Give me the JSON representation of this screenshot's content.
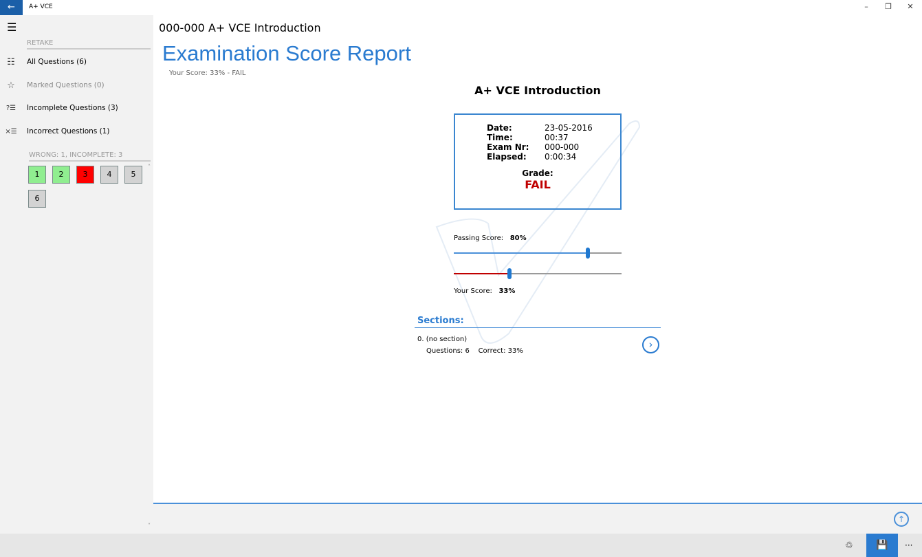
{
  "window": {
    "title": "A+ VCE",
    "back_icon": "arrow-left-icon",
    "minimize": "–",
    "restore": "❐",
    "close": "✕"
  },
  "sidebar": {
    "menu_icon": "hamburger-icon",
    "retake_header": "RETAKE",
    "items": [
      {
        "label": "All Questions (6)",
        "icon": "list-icon",
        "enabled": true
      },
      {
        "label": "Marked Questions (0)",
        "icon": "star-icon",
        "enabled": false
      },
      {
        "label": "Incomplete Questions (3)",
        "icon": "question-list-icon",
        "enabled": true
      },
      {
        "label": "Incorrect Questions (1)",
        "icon": "x-list-icon",
        "enabled": true
      }
    ],
    "summary_header": "WRONG: 1, INCOMPLETE: 3",
    "questions": [
      {
        "n": "1",
        "status": "correct"
      },
      {
        "n": "2",
        "status": "correct"
      },
      {
        "n": "3",
        "status": "wrong"
      },
      {
        "n": "4",
        "status": "incomplete"
      },
      {
        "n": "5",
        "status": "incomplete"
      },
      {
        "n": "6",
        "status": "incomplete"
      }
    ]
  },
  "main": {
    "exam_title": "000-000 A+ VCE Introduction",
    "heading": "Examination Score Report",
    "subtitle": "Your Score: 33% - FAIL",
    "report_title": "A+ VCE Introduction",
    "details": [
      {
        "label": "Date:",
        "value": "23-05-2016"
      },
      {
        "label": "Time:",
        "value": "00:37"
      },
      {
        "label": "Exam Nr:",
        "value": "000-000"
      },
      {
        "label": "Elapsed:",
        "value": "0:00:34"
      }
    ],
    "grade_label": "Grade:",
    "grade_value": "FAIL",
    "passing_label": "Passing Score:",
    "passing_value": "80%",
    "passing_fraction": 0.8,
    "score_label": "Your Score:",
    "score_value": "33%",
    "score_fraction": 0.33,
    "sections_header": "Sections:",
    "sections": [
      {
        "name": "0.  (no section)",
        "questions": "Questions:  6",
        "correct": "Correct:  33%"
      }
    ]
  },
  "colors": {
    "accent": "#2a7bd0",
    "fail": "#c00000",
    "correct": "#90ee90",
    "wrong": "#ff0000",
    "incomplete": "#d3d3d3"
  },
  "appbar": {
    "more": "···",
    "share_icon": "share-icon",
    "save_icon": "save-icon",
    "scroll_top_icon": "arrow-up-circle-icon"
  }
}
